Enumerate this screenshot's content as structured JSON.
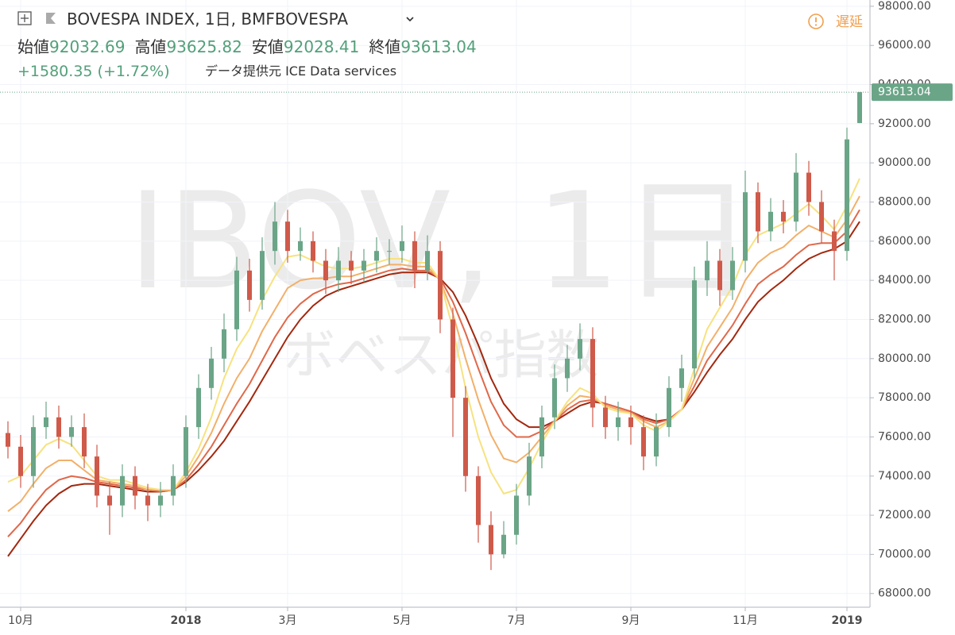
{
  "header": {
    "symbol": "BOVESPA INDEX, 1日, BMFBOVESPA",
    "labels": {
      "open": "始値",
      "high": "高値",
      "low": "安値",
      "close": "終値"
    },
    "change": "+1580.35 (+1.72%)",
    "source": "データ提供元 ICE Data services",
    "status": "遅延"
  },
  "chart_data": {
    "type": "ohlc",
    "watermark": "IBOV, 1日",
    "watermark_subtitle": "ボベスパ指数",
    "categories": [
      null,
      "10月",
      null,
      null,
      null,
      null,
      null,
      null,
      null,
      null,
      null,
      null,
      null,
      null,
      "2018",
      null,
      null,
      null,
      null,
      null,
      null,
      null,
      "3月",
      null,
      null,
      null,
      null,
      null,
      null,
      null,
      null,
      "5月",
      null,
      null,
      null,
      null,
      null,
      null,
      null,
      null,
      "7月",
      null,
      null,
      null,
      null,
      null,
      null,
      null,
      null,
      "9月",
      null,
      null,
      null,
      null,
      null,
      null,
      null,
      null,
      "11月",
      null,
      null,
      null,
      null,
      null,
      null,
      null,
      "2019",
      null
    ],
    "open": [
      76200,
      75500,
      74000,
      76500,
      77000,
      76000,
      76500,
      75000,
      73000,
      72500,
      74000,
      73000,
      72500,
      73000,
      74000,
      76500,
      78500,
      80000,
      81500,
      84500,
      83000,
      85500,
      87000,
      85500,
      86000,
      85000,
      84000,
      85000,
      84500,
      85000,
      85500,
      85500,
      86000,
      84500,
      85500,
      82000,
      78000,
      74000,
      71500,
      70000,
      71000,
      73000,
      75000,
      77000,
      79000,
      80000,
      81000,
      77500,
      76500,
      77000,
      76500,
      75000,
      76500,
      78500,
      79500,
      84000,
      85000,
      83500,
      85000,
      88500,
      86500,
      87500,
      87000,
      89500,
      88000,
      86500,
      85500,
      92032.69
    ],
    "high": [
      76800,
      76100,
      77100,
      77800,
      77600,
      77100,
      77200,
      75600,
      73700,
      74600,
      74500,
      73600,
      73700,
      74600,
      77100,
      79200,
      80600,
      82300,
      85200,
      85100,
      86200,
      88000,
      87600,
      86700,
      86500,
      85600,
      85700,
      85500,
      85600,
      86200,
      86100,
      86800,
      86500,
      86300,
      86000,
      82600,
      78600,
      74500,
      72200,
      71700,
      73600,
      75700,
      77600,
      79700,
      80700,
      81800,
      81600,
      78100,
      77800,
      77600,
      77100,
      77200,
      79100,
      80200,
      84700,
      86000,
      85600,
      85700,
      89600,
      89000,
      88200,
      88100,
      90500,
      90100,
      88600,
      87100,
      91800,
      93625.82
    ],
    "low": [
      74900,
      73400,
      73400,
      75900,
      75400,
      75500,
      74400,
      72400,
      71000,
      71900,
      72300,
      71700,
      71900,
      72500,
      73400,
      75900,
      77900,
      79300,
      80900,
      82400,
      82500,
      84800,
      84900,
      85000,
      84400,
      83300,
      83400,
      83800,
      83900,
      84400,
      84800,
      84900,
      83600,
      84000,
      81300,
      76000,
      73200,
      70600,
      69200,
      69800,
      70500,
      72500,
      74400,
      76400,
      78300,
      79400,
      76500,
      75900,
      75800,
      75600,
      74300,
      74500,
      76000,
      77800,
      79000,
      83200,
      82700,
      83000,
      84400,
      85900,
      86000,
      86400,
      86500,
      87300,
      85900,
      84000,
      85000,
      92028.41
    ],
    "close": [
      75500,
      74000,
      76500,
      77000,
      76000,
      76500,
      75000,
      73000,
      72500,
      74000,
      73000,
      72500,
      73000,
      74000,
      76500,
      78500,
      80000,
      81500,
      84500,
      83000,
      85500,
      87000,
      85500,
      86000,
      85000,
      84000,
      85000,
      84500,
      85000,
      85500,
      85500,
      86000,
      84500,
      85500,
      82000,
      78000,
      74000,
      71500,
      70000,
      71000,
      73000,
      75000,
      77000,
      79000,
      80000,
      81000,
      77500,
      76500,
      77000,
      76500,
      75000,
      76500,
      78500,
      79500,
      84000,
      85000,
      83500,
      85000,
      88500,
      86500,
      87500,
      87000,
      89500,
      88000,
      86500,
      85500,
      91200,
      93613.04
    ],
    "up_color": "#6aa587",
    "down_color": "#cf5a4a",
    "series": [
      {
        "color": "#a3280f",
        "values": [
          69900,
          70800,
          71700,
          72500,
          73100,
          73500,
          73600,
          73600,
          73500,
          73400,
          73300,
          73200,
          73200,
          73300,
          73700,
          74300,
          75000,
          75800,
          76800,
          77800,
          78900,
          80000,
          81100,
          82000,
          82700,
          83200,
          83500,
          83700,
          83900,
          84100,
          84300,
          84400,
          84400,
          84400,
          84100,
          83400,
          82200,
          80700,
          79000,
          77700,
          76900,
          76500,
          76500,
          76800,
          77200,
          77600,
          77800,
          77700,
          77500,
          77300,
          77000,
          76800,
          76900,
          77400,
          78300,
          79300,
          80200,
          81000,
          82000,
          82900,
          83500,
          84000,
          84600,
          85100,
          85400,
          85600,
          86000,
          87000
        ]
      },
      {
        "color": "#e0684a",
        "values": [
          70900,
          71600,
          72500,
          73300,
          73800,
          74000,
          73900,
          73700,
          73600,
          73500,
          73400,
          73300,
          73200,
          73300,
          73800,
          74600,
          75500,
          76600,
          77700,
          78700,
          79900,
          81100,
          82100,
          82800,
          83300,
          83600,
          83800,
          83900,
          84100,
          84300,
          84500,
          84600,
          84500,
          84500,
          84100,
          82900,
          81300,
          79500,
          77800,
          76600,
          76000,
          76000,
          76300,
          76800,
          77400,
          77800,
          77900,
          77700,
          77500,
          77300,
          76900,
          76700,
          76900,
          77400,
          78600,
          79900,
          80800,
          81700,
          82800,
          83800,
          84300,
          84700,
          85300,
          85800,
          85900,
          85900,
          86500,
          87600
        ]
      },
      {
        "color": "#f2b06a",
        "values": [
          72200,
          72700,
          73600,
          74400,
          74800,
          74800,
          74300,
          73800,
          73700,
          73600,
          73500,
          73300,
          73300,
          73300,
          74000,
          75000,
          76200,
          77700,
          79000,
          80000,
          81400,
          82500,
          83600,
          84000,
          84100,
          84100,
          84200,
          84200,
          84400,
          84600,
          84800,
          84800,
          84700,
          84700,
          84000,
          82300,
          80000,
          77900,
          76100,
          74900,
          74700,
          75200,
          76000,
          76800,
          77600,
          78100,
          78000,
          77600,
          77400,
          77200,
          76800,
          76500,
          76800,
          77400,
          79000,
          80600,
          81600,
          82600,
          84000,
          84900,
          85400,
          85700,
          86300,
          86800,
          86500,
          86200,
          87100,
          88300
        ]
      },
      {
        "color": "#f7e27f",
        "values": [
          73700,
          74000,
          74800,
          75600,
          75900,
          75600,
          74800,
          74000,
          73800,
          73800,
          73600,
          73400,
          73300,
          73300,
          74200,
          75400,
          77000,
          79000,
          80500,
          81500,
          83000,
          84200,
          85200,
          85300,
          85000,
          84700,
          84600,
          84600,
          84700,
          84900,
          85100,
          85100,
          84900,
          84900,
          84000,
          81500,
          78500,
          76000,
          74200,
          73100,
          73300,
          74400,
          75700,
          76800,
          77800,
          78500,
          78200,
          77500,
          77300,
          77200,
          76600,
          76300,
          76800,
          77400,
          79500,
          81500,
          82600,
          83700,
          85300,
          86300,
          86600,
          86900,
          87400,
          87900,
          87300,
          86600,
          87800,
          89200
        ]
      }
    ],
    "ylim": [
      67300,
      98320
    ],
    "yticks": [
      {
        "value": 68000,
        "label": "68000.00"
      },
      {
        "value": 70000,
        "label": "70000.00"
      },
      {
        "value": 72000,
        "label": "72000.00"
      },
      {
        "value": 74000,
        "label": "74000.00"
      },
      {
        "value": 76000,
        "label": "76000.00"
      },
      {
        "value": 78000,
        "label": "78000.00"
      },
      {
        "value": 80000,
        "label": "80000.00"
      },
      {
        "value": 82000,
        "label": "82000.00"
      },
      {
        "value": 84000,
        "label": "84000.00"
      },
      {
        "value": 86000,
        "label": "86000.00"
      },
      {
        "value": 88000,
        "label": "88000.00"
      },
      {
        "value": 90000,
        "label": "90000.00"
      },
      {
        "value": 92000,
        "label": "92000.00"
      },
      {
        "value": 94000,
        "label": "94000.00"
      },
      {
        "value": 96000,
        "label": "96000.00"
      },
      {
        "value": 98000,
        "label": "98000.00"
      }
    ],
    "grid": true
  }
}
